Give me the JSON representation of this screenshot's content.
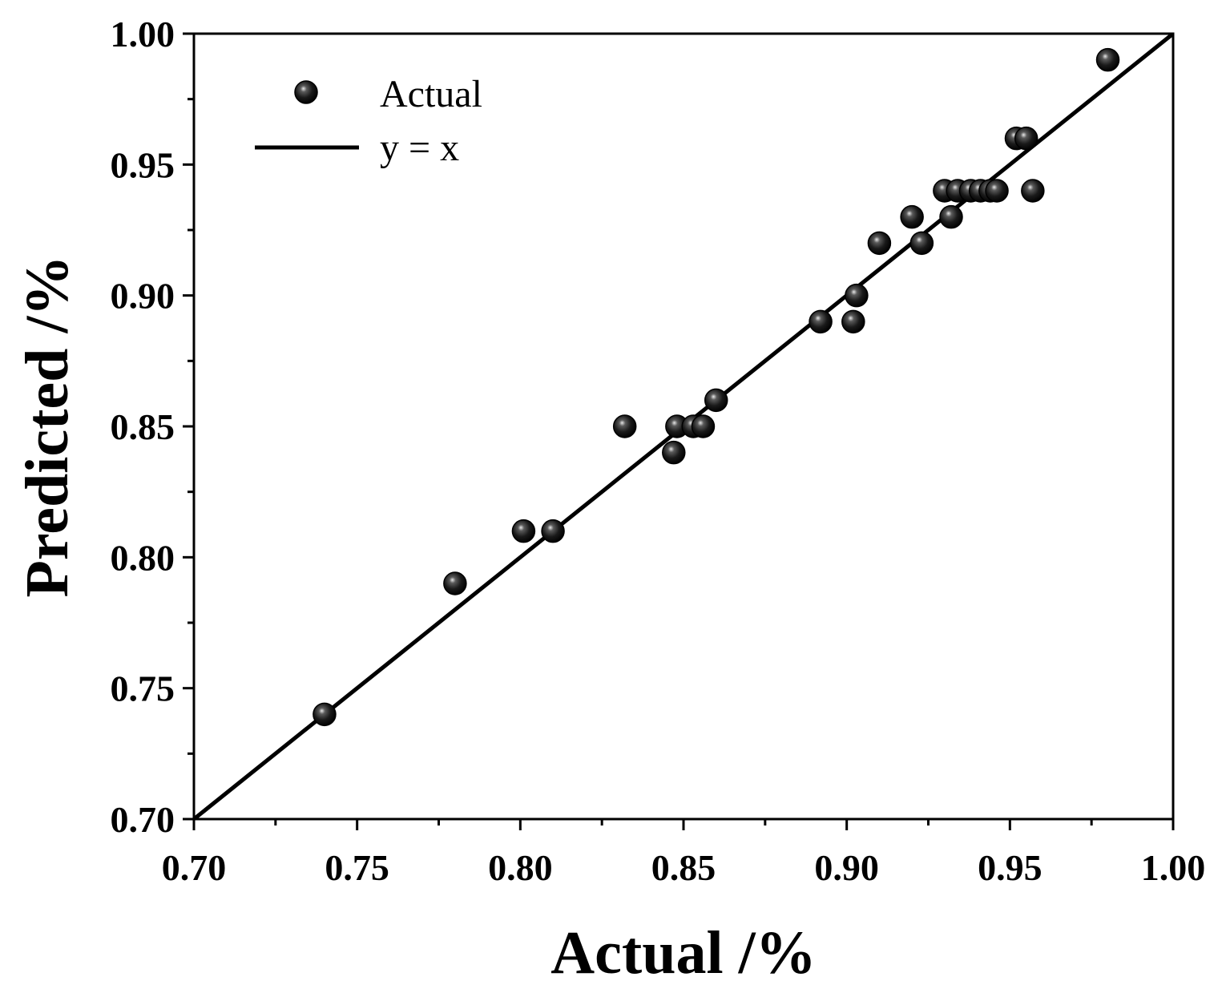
{
  "chart_data": {
    "type": "scatter",
    "title": "",
    "xlabel": "Actual /%",
    "ylabel": "Predicted /%",
    "xlim": [
      0.7,
      1.0
    ],
    "ylim": [
      0.7,
      1.0
    ],
    "xticks": [
      "0.70",
      "0.75",
      "0.80",
      "0.85",
      "0.90",
      "0.95",
      "1.00"
    ],
    "yticks": [
      "0.70",
      "0.75",
      "0.80",
      "0.85",
      "0.90",
      "0.95",
      "1.00"
    ],
    "grid": false,
    "legend_position": "top-left",
    "series": [
      {
        "name": "Actual",
        "kind": "scatter",
        "x": [
          0.74,
          0.78,
          0.801,
          0.81,
          0.832,
          0.847,
          0.848,
          0.853,
          0.856,
          0.86,
          0.892,
          0.902,
          0.903,
          0.91,
          0.92,
          0.923,
          0.93,
          0.932,
          0.934,
          0.938,
          0.941,
          0.944,
          0.946,
          0.952,
          0.955,
          0.957,
          0.98
        ],
        "y": [
          0.74,
          0.79,
          0.81,
          0.81,
          0.85,
          0.84,
          0.85,
          0.85,
          0.85,
          0.86,
          0.89,
          0.89,
          0.9,
          0.92,
          0.93,
          0.92,
          0.94,
          0.93,
          0.94,
          0.94,
          0.94,
          0.94,
          0.94,
          0.96,
          0.96,
          0.94,
          0.99
        ]
      },
      {
        "name": "y = x",
        "kind": "line",
        "x": [
          0.7,
          1.0
        ],
        "y": [
          0.7,
          1.0
        ]
      }
    ],
    "colors": {
      "line": "#000000",
      "marker_dark": "#1a1a1a",
      "marker_mid": "#5a5a5a",
      "marker_highlight": "#e8e8e8"
    }
  }
}
